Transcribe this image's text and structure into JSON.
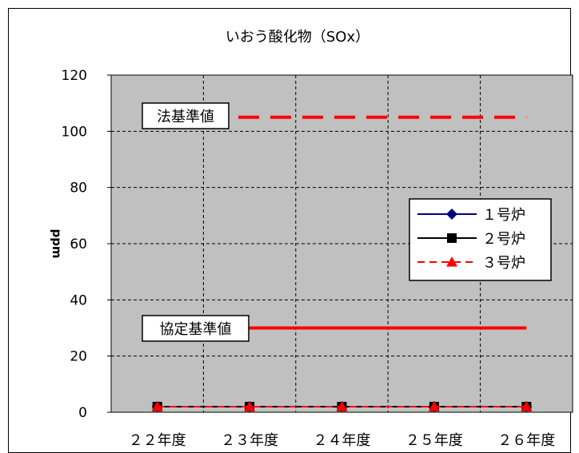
{
  "chart_data": {
    "type": "line",
    "title": "いおう酸化物（SOx）",
    "xlabel": "",
    "ylabel": "ppm",
    "categories": [
      "２２年度",
      "２３年度",
      "２４年度",
      "２５年度",
      "２６年度"
    ],
    "ylim": [
      0,
      120
    ],
    "yticks": [
      0,
      20,
      40,
      60,
      80,
      100,
      120
    ],
    "grid": true,
    "grid_style": "dashed",
    "plot_background": "#c0c0c0",
    "legend_position": "right",
    "series": [
      {
        "name": "１号炉",
        "values": [
          2,
          2,
          2,
          2,
          2
        ],
        "color": "#000080",
        "marker": "diamond",
        "line": "solid"
      },
      {
        "name": "２号炉",
        "values": [
          2,
          2,
          2,
          2,
          2
        ],
        "color": "#000000",
        "marker": "square",
        "line": "solid"
      },
      {
        "name": "３号炉",
        "values": [
          2,
          2,
          2,
          2,
          2
        ],
        "color": "#ff0000",
        "marker": "triangle",
        "line": "dashed"
      }
    ],
    "reference_lines": [
      {
        "label": "法基準値",
        "value": 105,
        "color": "#ff0000",
        "line": "dashed"
      },
      {
        "label": "協定基準値",
        "value": 30,
        "color": "#ff0000",
        "line": "solid"
      }
    ]
  }
}
